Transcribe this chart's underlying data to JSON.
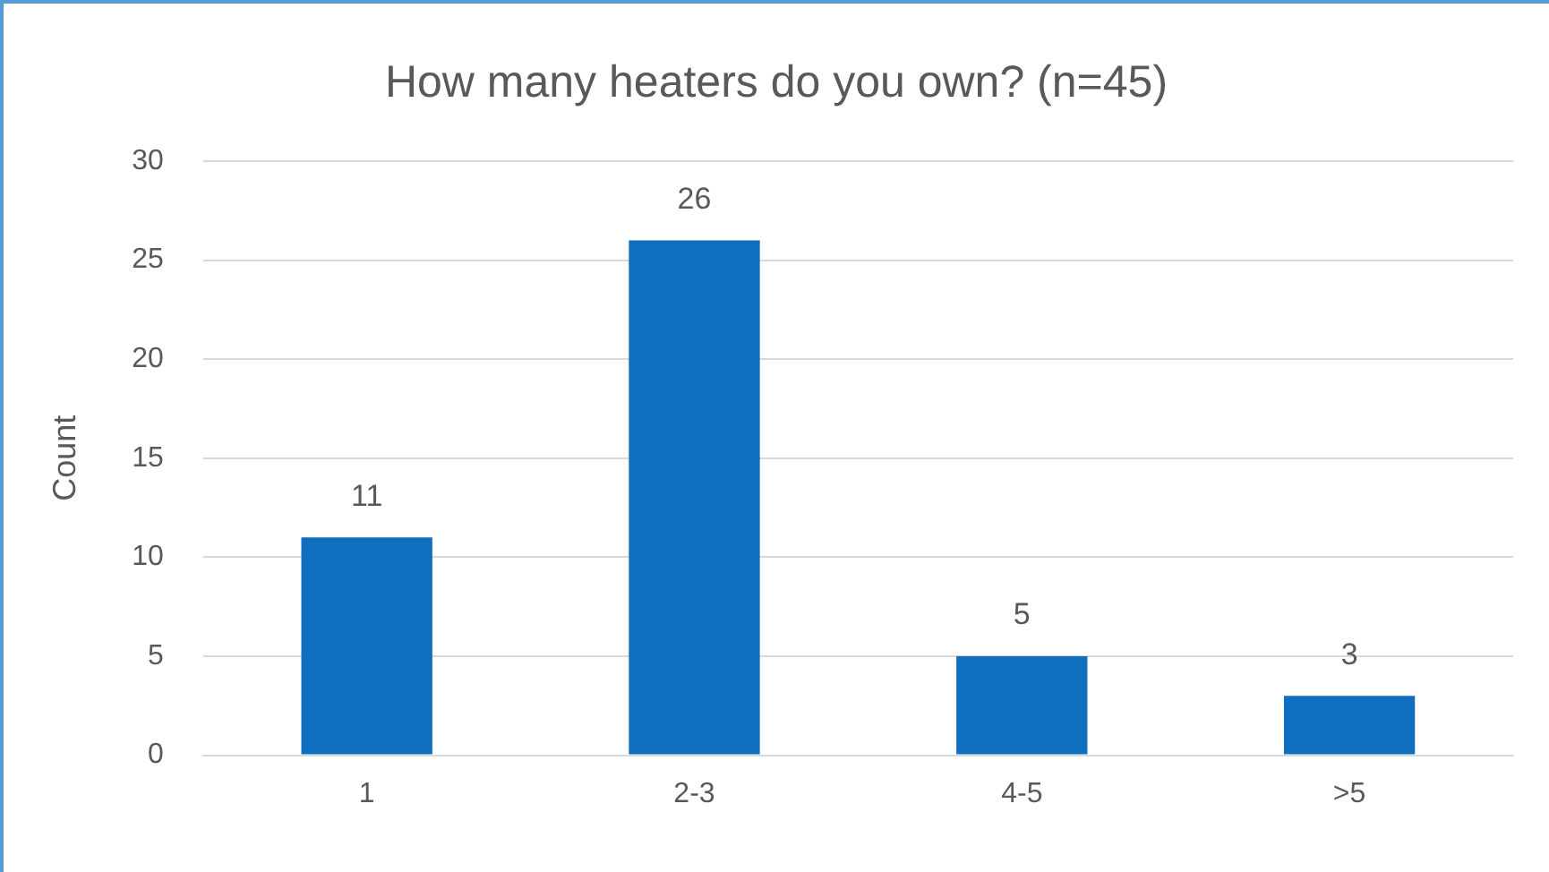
{
  "chart_data": {
    "type": "bar",
    "title": "How many heaters do you own? (n=45)",
    "ylabel": "Count",
    "categories": [
      "1",
      "2-3",
      "4-5",
      ">5"
    ],
    "values": [
      11,
      26,
      5,
      3
    ],
    "color": "#106ebe",
    "ylim": [
      0,
      30
    ],
    "yticks": [
      0,
      5,
      10,
      15,
      20,
      25,
      30
    ],
    "grid": "y",
    "data_labels": true,
    "legend": false
  }
}
